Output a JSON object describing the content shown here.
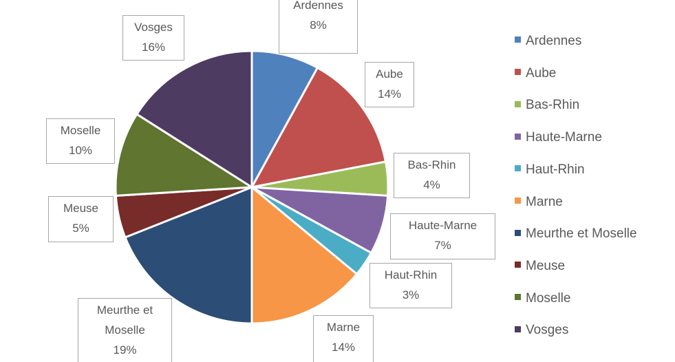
{
  "chart_data": {
    "type": "pie",
    "categories": [
      "Ardennes",
      "Aube",
      "Bas-Rhin",
      "Haute-Marne",
      "Haut-Rhin",
      "Marne",
      "Meurthe et Moselle",
      "Meuse",
      "Moselle",
      "Vosges"
    ],
    "values": [
      8,
      14,
      4,
      7,
      3,
      14,
      19,
      5,
      10,
      16
    ],
    "value_labels": [
      "8%",
      "14%",
      "4%",
      "7%",
      "3%",
      "14%",
      "19%",
      "5%",
      "10%",
      "16%"
    ],
    "colors": [
      "#4f81bd",
      "#c0504d",
      "#9bbb59",
      "#8064a2",
      "#4bacc6",
      "#f79646",
      "#2c4d75",
      "#772c2a",
      "#5f7530",
      "#4d3b62"
    ],
    "legend": "right"
  }
}
